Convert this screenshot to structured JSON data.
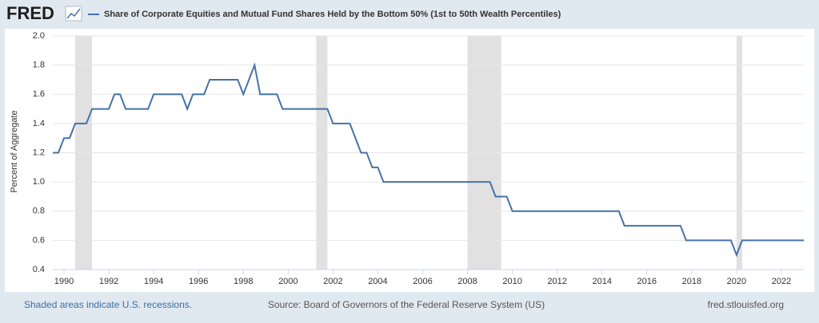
{
  "chart_data": {
    "type": "line",
    "logo": "FRED",
    "title": "Share of Corporate Equities and Mutual Fund Shares Held by the Bottom 50% (1st to 50th Wealth Percentiles)",
    "y_label": "Percent of Aggregate",
    "x": [
      1989.5,
      1989.75,
      1990.0,
      1990.25,
      1990.5,
      1991.0,
      1991.25,
      1992.0,
      1992.25,
      1992.5,
      1992.75,
      1993.75,
      1994.0,
      1995.25,
      1995.5,
      1995.75,
      1996.25,
      1996.5,
      1997.75,
      1998.0,
      1998.5,
      1998.75,
      1999.5,
      1999.75,
      2001.75,
      2002.0,
      2002.75,
      2003.25,
      2003.5,
      2003.75,
      2004.0,
      2004.25,
      2009.0,
      2009.25,
      2009.75,
      2010.0,
      2014.75,
      2015.0,
      2017.5,
      2017.75,
      2019.75,
      2020.0,
      2020.25,
      2023.0
    ],
    "series": [
      {
        "name": "Share of Corporate Equities and Mutual Fund Shares Held by the Bottom 50% (1st to 50th Wealth Percentiles)",
        "color": "#4572a7",
        "values": [
          1.2,
          1.2,
          1.3,
          1.3,
          1.4,
          1.4,
          1.5,
          1.5,
          1.6,
          1.6,
          1.5,
          1.5,
          1.6,
          1.6,
          1.5,
          1.6,
          1.6,
          1.7,
          1.7,
          1.6,
          1.8,
          1.6,
          1.6,
          1.5,
          1.5,
          1.4,
          1.4,
          1.2,
          1.2,
          1.1,
          1.1,
          1.0,
          1.0,
          0.9,
          0.9,
          0.8,
          0.8,
          0.7,
          0.7,
          0.6,
          0.6,
          0.5,
          0.6,
          0.6
        ]
      }
    ],
    "recessions": [
      [
        1990.5,
        1991.25
      ],
      [
        2001.25,
        2001.75
      ],
      [
        2008.0,
        2009.5
      ],
      [
        2020.0,
        2020.25
      ]
    ],
    "recession_color": "#e1e1e1",
    "xlim": [
      1989.5,
      2023.0
    ],
    "xticks": [
      1990,
      1992,
      1994,
      1996,
      1998,
      2000,
      2002,
      2004,
      2006,
      2008,
      2010,
      2012,
      2014,
      2016,
      2018,
      2020,
      2022
    ],
    "ylim": [
      0.4,
      2.0
    ],
    "yticks": [
      0.4,
      0.6,
      0.8,
      {
        "value": 1.0,
        "label": "1.0"
      },
      1.2,
      1.4,
      1.6,
      1.8,
      {
        "value": 2.0,
        "label": "2.0"
      }
    ],
    "grid": true,
    "footer_left": "Shaded areas indicate U.S. recessions.",
    "footer_center": "Source: Board of Governors of the Federal Reserve System (US)",
    "footer_right": "fred.stlouisfed.org"
  }
}
